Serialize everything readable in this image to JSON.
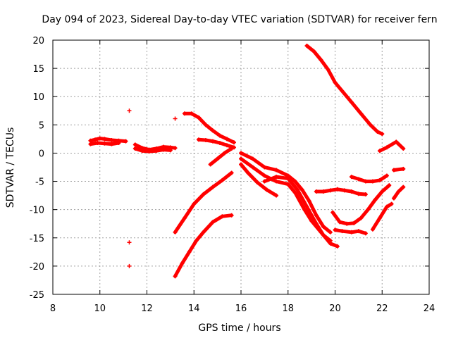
{
  "chart_data": {
    "type": "scatter",
    "title": "Day 094 of 2023, Sidereal Day-to-day VTEC variation (SDTVAR) for receiver fern",
    "xlabel": "GPS time / hours",
    "ylabel": "SDTVAR / TECUs",
    "xlim": [
      8,
      24
    ],
    "ylim": [
      -25,
      20
    ],
    "xticks": [
      8,
      10,
      12,
      14,
      16,
      18,
      20,
      22,
      24
    ],
    "yticks": [
      -25,
      -20,
      -15,
      -10,
      -5,
      0,
      5,
      10,
      15,
      20
    ],
    "grid": true,
    "legend": "none",
    "marker": "+",
    "color": "#ff0000",
    "series": [
      {
        "name": "track-1",
        "x": [
          9.6,
          9.8,
          10.0,
          10.2,
          10.5,
          10.8,
          11.1
        ],
        "y": [
          2.2,
          2.4,
          2.6,
          2.5,
          2.3,
          2.2,
          2.1
        ]
      },
      {
        "name": "track-2",
        "x": [
          9.6,
          9.9,
          10.2,
          10.5,
          10.8
        ],
        "y": [
          1.6,
          1.8,
          1.7,
          1.6,
          1.8
        ]
      },
      {
        "name": "track-3",
        "x": [
          11.5,
          11.8,
          12.1,
          12.4,
          12.7,
          13.0,
          13.2
        ],
        "y": [
          1.5,
          0.9,
          0.6,
          0.8,
          1.1,
          1.0,
          0.9
        ]
      },
      {
        "name": "track-4",
        "x": [
          11.5,
          11.8,
          12.1,
          12.4,
          12.7,
          13.0
        ],
        "y": [
          0.8,
          0.4,
          0.3,
          0.4,
          0.6,
          0.5
        ]
      },
      {
        "name": "isolated-points",
        "x": [
          11.25,
          13.2,
          11.25,
          11.25
        ],
        "y": [
          7.5,
          6.1,
          -15.8,
          -20.0
        ]
      },
      {
        "name": "track-5",
        "x": [
          13.6,
          13.9,
          14.2,
          14.5,
          14.8,
          15.1,
          15.4,
          15.7
        ],
        "y": [
          7.0,
          7.0,
          6.3,
          5.0,
          4.0,
          3.1,
          2.5,
          1.9
        ]
      },
      {
        "name": "track-6",
        "x": [
          14.2,
          14.5,
          14.8,
          15.1,
          15.4,
          15.7
        ],
        "y": [
          2.4,
          2.3,
          2.1,
          1.8,
          1.4,
          1.0
        ]
      },
      {
        "name": "track-7",
        "x": [
          14.7,
          15.0,
          15.3,
          15.6
        ],
        "y": [
          -2.0,
          -1.0,
          0.0,
          0.8
        ]
      },
      {
        "name": "track-8",
        "x": [
          13.2,
          13.6,
          14.0,
          14.4,
          14.8,
          15.2,
          15.6
        ],
        "y": [
          -14.0,
          -11.5,
          -9.0,
          -7.3,
          -6.0,
          -4.8,
          -3.5
        ]
      },
      {
        "name": "track-9",
        "x": [
          13.2,
          13.5,
          13.8,
          14.1,
          14.4,
          14.8,
          15.2,
          15.6
        ],
        "y": [
          -21.8,
          -19.5,
          -17.5,
          -15.5,
          -14.0,
          -12.2,
          -11.2,
          -11.0
        ]
      },
      {
        "name": "track-10",
        "x": [
          16.0,
          16.5,
          17.0,
          17.5,
          18.0,
          18.3,
          18.6,
          18.9,
          19.2,
          19.5,
          19.8
        ],
        "y": [
          0.0,
          -1.0,
          -2.5,
          -3.0,
          -4.0,
          -5.0,
          -6.5,
          -8.5,
          -11.0,
          -13.0,
          -14.0
        ]
      },
      {
        "name": "track-11",
        "x": [
          16.0,
          16.5,
          17.0,
          17.5,
          18.0,
          18.3,
          18.7,
          19.0,
          19.4,
          19.8,
          20.1
        ],
        "y": [
          -1.0,
          -2.5,
          -4.0,
          -5.0,
          -5.5,
          -7.0,
          -10.0,
          -12.0,
          -14.0,
          -16.0,
          -16.5
        ]
      },
      {
        "name": "track-12",
        "x": [
          16.0,
          16.3,
          16.7,
          17.1,
          17.5
        ],
        "y": [
          -2.0,
          -3.5,
          -5.2,
          -6.5,
          -7.5
        ]
      },
      {
        "name": "track-13",
        "x": [
          17.0,
          17.5,
          18.0,
          18.4,
          18.8,
          19.2,
          19.5,
          19.8
        ],
        "y": [
          -5.0,
          -4.2,
          -4.5,
          -6.5,
          -9.5,
          -12.5,
          -14.5,
          -15.5
        ]
      },
      {
        "name": "track-14",
        "x": [
          18.8,
          19.1,
          19.4,
          19.7,
          20.0,
          20.3,
          20.7,
          21.1,
          21.5,
          21.8,
          22.0
        ],
        "y": [
          19.0,
          18.0,
          16.5,
          14.8,
          12.5,
          11.0,
          9.0,
          7.0,
          5.0,
          3.8,
          3.4
        ]
      },
      {
        "name": "track-15",
        "x": [
          19.2,
          19.5,
          19.8,
          20.1,
          20.4,
          20.7,
          21.0,
          21.3
        ],
        "y": [
          -6.8,
          -6.8,
          -6.6,
          -6.4,
          -6.6,
          -6.8,
          -7.2,
          -7.3
        ]
      },
      {
        "name": "track-16",
        "x": [
          20.7,
          21.0,
          21.3,
          21.6,
          21.9,
          22.2
        ],
        "y": [
          -4.2,
          -4.6,
          -5.0,
          -5.0,
          -4.8,
          -4.0
        ]
      },
      {
        "name": "track-17",
        "x": [
          19.9,
          20.2,
          20.5,
          20.8,
          21.1,
          21.4,
          21.7,
          22.0,
          22.3
        ],
        "y": [
          -10.5,
          -12.2,
          -12.5,
          -12.4,
          -11.5,
          -10.0,
          -8.3,
          -6.8,
          -5.7
        ]
      },
      {
        "name": "track-18",
        "x": [
          20.0,
          20.3,
          20.7,
          21.0,
          21.3
        ],
        "y": [
          -13.6,
          -13.8,
          -14.0,
          -13.8,
          -14.2
        ]
      },
      {
        "name": "track-19",
        "x": [
          21.6,
          21.9,
          22.2,
          22.4
        ],
        "y": [
          -13.5,
          -11.5,
          -9.5,
          -9.0
        ]
      },
      {
        "name": "track-20",
        "x": [
          21.9,
          22.2,
          22.6,
          22.9
        ],
        "y": [
          0.4,
          1.0,
          2.0,
          0.8
        ]
      },
      {
        "name": "track-21",
        "x": [
          22.5,
          22.9
        ],
        "y": [
          -3.0,
          -2.8
        ]
      },
      {
        "name": "track-22",
        "x": [
          22.5,
          22.7,
          22.9
        ],
        "y": [
          -8.0,
          -6.8,
          -6.0
        ]
      }
    ]
  }
}
